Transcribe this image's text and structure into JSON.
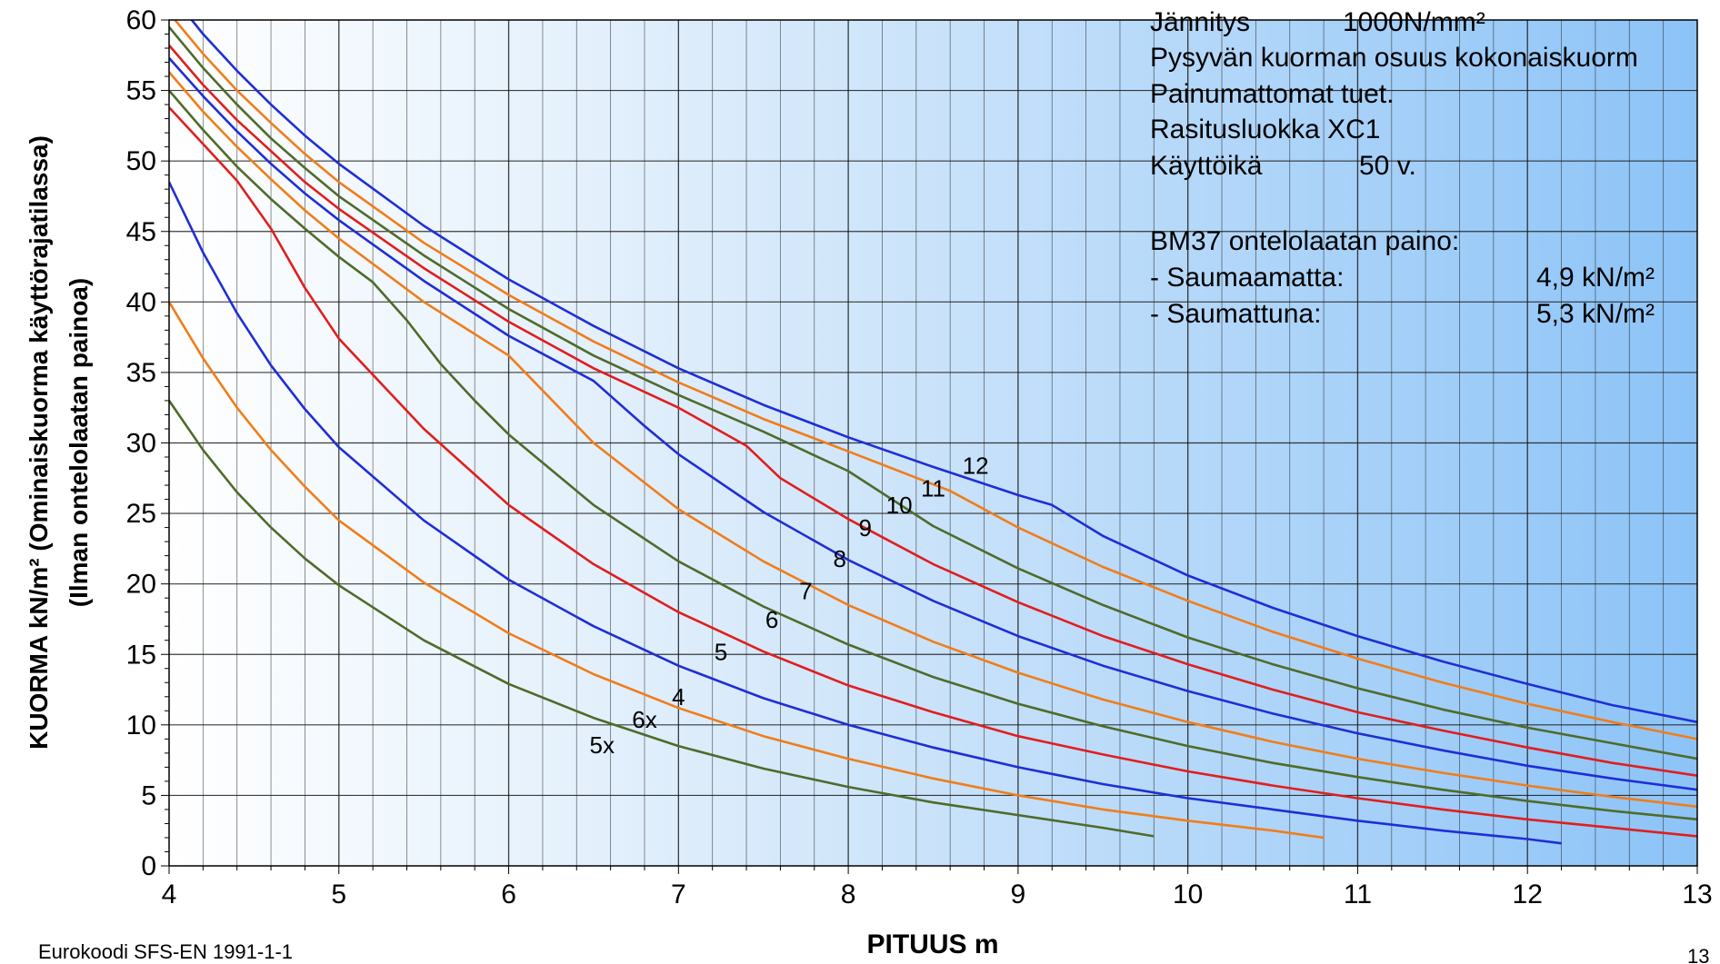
{
  "chart_data": {
    "type": "line",
    "xlabel": "PITUUS m",
    "ylabel_line1": "KUORMA kN/m² (Ominaiskuorma käyttörajatilassa)",
    "ylabel_line2": "(Ilman ontelolaatan painoa)",
    "xlim": [
      4,
      13
    ],
    "ylim": [
      0,
      60
    ],
    "xticks": [
      "4",
      "5",
      "6",
      "7",
      "8",
      "9",
      "10",
      "11",
      "12",
      "13"
    ],
    "yticks": [
      "0",
      "5",
      "10",
      "15",
      "20",
      "25",
      "30",
      "35",
      "40",
      "45",
      "50",
      "55",
      "60"
    ],
    "grid": true,
    "series": [
      {
        "name": "5x",
        "color": "#4f6b2a",
        "label_at": [
          6.55,
          8.0
        ],
        "points": [
          [
            4,
            33
          ],
          [
            4.2,
            29.5
          ],
          [
            4.4,
            26.5
          ],
          [
            4.6,
            24
          ],
          [
            4.8,
            21.8
          ],
          [
            5,
            19.9
          ],
          [
            5.5,
            16
          ],
          [
            6,
            12.9
          ],
          [
            6.5,
            10.5
          ],
          [
            7,
            8.5
          ],
          [
            7.5,
            6.9
          ],
          [
            8,
            5.6
          ],
          [
            8.5,
            4.5
          ],
          [
            9,
            3.6
          ],
          [
            9.5,
            2.7
          ],
          [
            9.8,
            2.1
          ]
        ]
      },
      {
        "name": "6x",
        "color": "#f07d1a",
        "label_at": [
          6.8,
          9.8
        ],
        "points": [
          [
            4,
            40
          ],
          [
            4.2,
            36
          ],
          [
            4.4,
            32.5
          ],
          [
            4.6,
            29.5
          ],
          [
            4.8,
            26.9
          ],
          [
            5,
            24.5
          ],
          [
            5.5,
            20.1
          ],
          [
            6,
            16.5
          ],
          [
            6.5,
            13.6
          ],
          [
            7,
            11.2
          ],
          [
            7.5,
            9.2
          ],
          [
            8,
            7.6
          ],
          [
            8.5,
            6.2
          ],
          [
            9,
            5.0
          ],
          [
            9.5,
            4.0
          ],
          [
            10,
            3.2
          ],
          [
            10.5,
            2.5
          ],
          [
            10.8,
            2.0
          ]
        ]
      },
      {
        "name": "4",
        "color": "#1f2ed6",
        "label_at": [
          7.0,
          11.4
        ],
        "points": [
          [
            4,
            48.5
          ],
          [
            4.2,
            43.5
          ],
          [
            4.4,
            39.2
          ],
          [
            4.6,
            35.5
          ],
          [
            4.8,
            32.4
          ],
          [
            5,
            29.7
          ],
          [
            5.5,
            24.5
          ],
          [
            6,
            20.3
          ],
          [
            6.5,
            17
          ],
          [
            7,
            14.2
          ],
          [
            7.5,
            11.9
          ],
          [
            8,
            10.0
          ],
          [
            8.5,
            8.4
          ],
          [
            9,
            7.0
          ],
          [
            9.5,
            5.8
          ],
          [
            10,
            4.8
          ],
          [
            10.5,
            4.0
          ],
          [
            11,
            3.2
          ],
          [
            11.5,
            2.5
          ],
          [
            12,
            1.9
          ],
          [
            12.2,
            1.6
          ]
        ]
      },
      {
        "name": "5",
        "color": "#e01e1e",
        "label_at": [
          7.25,
          14.6
        ],
        "points": [
          [
            4,
            53.8
          ],
          [
            4.2,
            51.2
          ],
          [
            4.4,
            48.6
          ],
          [
            4.6,
            45.2
          ],
          [
            4.8,
            41.0
          ],
          [
            5,
            37.4
          ],
          [
            5.5,
            31
          ],
          [
            6,
            25.6
          ],
          [
            6.5,
            21.4
          ],
          [
            7,
            18.0
          ],
          [
            7.5,
            15.2
          ],
          [
            8,
            12.8
          ],
          [
            8.5,
            10.9
          ],
          [
            9,
            9.2
          ],
          [
            9.5,
            7.9
          ],
          [
            10,
            6.7
          ],
          [
            10.5,
            5.7
          ],
          [
            11,
            4.8
          ],
          [
            11.5,
            4.0
          ],
          [
            12,
            3.3
          ],
          [
            12.5,
            2.7
          ],
          [
            13,
            2.1
          ]
        ]
      },
      {
        "name": "6",
        "color": "#4f6b2a",
        "label_at": [
          7.55,
          16.9
        ],
        "points": [
          [
            4,
            55
          ],
          [
            4.2,
            52.2
          ],
          [
            4.4,
            49.6
          ],
          [
            4.6,
            47.3
          ],
          [
            4.8,
            45.2
          ],
          [
            5,
            43.2
          ],
          [
            5.2,
            41.4
          ],
          [
            5.4,
            38.7
          ],
          [
            5.6,
            35.6
          ],
          [
            5.8,
            33.0
          ],
          [
            6,
            30.6
          ],
          [
            6.5,
            25.6
          ],
          [
            7,
            21.6
          ],
          [
            7.5,
            18.4
          ],
          [
            8,
            15.7
          ],
          [
            8.5,
            13.4
          ],
          [
            9,
            11.5
          ],
          [
            9.5,
            9.9
          ],
          [
            10,
            8.5
          ],
          [
            10.5,
            7.3
          ],
          [
            11,
            6.3
          ],
          [
            11.5,
            5.4
          ],
          [
            12,
            4.6
          ],
          [
            12.5,
            3.9
          ],
          [
            13,
            3.3
          ]
        ]
      },
      {
        "name": "7",
        "color": "#f07d1a",
        "label_at": [
          7.75,
          18.9
        ],
        "points": [
          [
            4,
            56.3
          ],
          [
            4.2,
            53.5
          ],
          [
            4.4,
            51.0
          ],
          [
            4.6,
            48.7
          ],
          [
            4.8,
            46.5
          ],
          [
            5,
            44.5
          ],
          [
            5.5,
            40.0
          ],
          [
            6,
            36.2
          ],
          [
            6.5,
            30.0
          ],
          [
            7,
            25.3
          ],
          [
            7.5,
            21.6
          ],
          [
            8,
            18.5
          ],
          [
            8.5,
            15.9
          ],
          [
            9,
            13.7
          ],
          [
            9.5,
            11.8
          ],
          [
            10,
            10.2
          ],
          [
            10.5,
            8.8
          ],
          [
            11,
            7.6
          ],
          [
            11.5,
            6.6
          ],
          [
            12,
            5.7
          ],
          [
            12.5,
            4.9
          ],
          [
            13,
            4.2
          ]
        ]
      },
      {
        "name": "8",
        "color": "#1f2ed6",
        "label_at": [
          7.95,
          21.2
        ],
        "points": [
          [
            4,
            57.3
          ],
          [
            4.2,
            54.6
          ],
          [
            4.4,
            52.1
          ],
          [
            4.6,
            49.8
          ],
          [
            4.8,
            47.7
          ],
          [
            5,
            45.8
          ],
          [
            5.5,
            41.5
          ],
          [
            6,
            37.6
          ],
          [
            6.5,
            34.4
          ],
          [
            6.8,
            31.2
          ],
          [
            7,
            29.2
          ],
          [
            7.5,
            25.1
          ],
          [
            8,
            21.7
          ],
          [
            8.5,
            18.8
          ],
          [
            9,
            16.3
          ],
          [
            9.5,
            14.2
          ],
          [
            10,
            12.4
          ],
          [
            10.5,
            10.8
          ],
          [
            11,
            9.4
          ],
          [
            11.5,
            8.2
          ],
          [
            12,
            7.1
          ],
          [
            12.5,
            6.2
          ],
          [
            13,
            5.4
          ]
        ]
      },
      {
        "name": "9",
        "color": "#e01e1e",
        "label_at": [
          8.1,
          23.4
        ],
        "points": [
          [
            4,
            58.2
          ],
          [
            4.2,
            55.4
          ],
          [
            4.4,
            52.9
          ],
          [
            4.6,
            50.7
          ],
          [
            4.8,
            48.5
          ],
          [
            5,
            46.6
          ],
          [
            5.5,
            42.4
          ],
          [
            6,
            38.6
          ],
          [
            6.5,
            35.3
          ],
          [
            7,
            32.5
          ],
          [
            7.4,
            29.8
          ],
          [
            7.6,
            27.5
          ],
          [
            8,
            24.6
          ],
          [
            8.5,
            21.4
          ],
          [
            9,
            18.7
          ],
          [
            9.5,
            16.3
          ],
          [
            10,
            14.3
          ],
          [
            10.5,
            12.5
          ],
          [
            11,
            10.9
          ],
          [
            11.5,
            9.6
          ],
          [
            12,
            8.4
          ],
          [
            12.5,
            7.3
          ],
          [
            13,
            6.4
          ]
        ]
      },
      {
        "name": "10",
        "color": "#4f6b2a",
        "label_at": [
          8.3,
          25.0
        ],
        "points": [
          [
            4,
            59.5
          ],
          [
            4.2,
            56.6
          ],
          [
            4.4,
            54.0
          ],
          [
            4.6,
            51.6
          ],
          [
            4.8,
            49.5
          ],
          [
            5,
            47.5
          ],
          [
            5.5,
            43.3
          ],
          [
            6,
            39.5
          ],
          [
            6.5,
            36.2
          ],
          [
            7,
            33.4
          ],
          [
            7.5,
            30.8
          ],
          [
            8,
            28.0
          ],
          [
            8.5,
            24.1
          ],
          [
            9,
            21.1
          ],
          [
            9.5,
            18.5
          ],
          [
            10,
            16.2
          ],
          [
            10.5,
            14.3
          ],
          [
            11,
            12.6
          ],
          [
            11.5,
            11.1
          ],
          [
            12,
            9.8
          ],
          [
            12.5,
            8.7
          ],
          [
            13,
            7.6
          ]
        ]
      },
      {
        "name": "11",
        "color": "#f07d1a",
        "label_at": [
          8.5,
          26.2
        ],
        "points": [
          [
            4,
            60.5
          ],
          [
            4.2,
            57.6
          ],
          [
            4.4,
            55.0
          ],
          [
            4.6,
            52.7
          ],
          [
            4.8,
            50.5
          ],
          [
            5,
            48.5
          ],
          [
            5.5,
            44.2
          ],
          [
            6,
            40.5
          ],
          [
            6.5,
            37.2
          ],
          [
            7,
            34.3
          ],
          [
            7.5,
            31.7
          ],
          [
            8,
            29.4
          ],
          [
            8.6,
            26.6
          ],
          [
            9,
            24.0
          ],
          [
            9.5,
            21.2
          ],
          [
            10,
            18.8
          ],
          [
            10.5,
            16.6
          ],
          [
            11,
            14.7
          ],
          [
            11.5,
            13.0
          ],
          [
            12,
            11.5
          ],
          [
            12.5,
            10.2
          ],
          [
            13,
            9.0
          ]
        ]
      },
      {
        "name": "12",
        "color": "#1f2ed6",
        "label_at": [
          8.75,
          27.8
        ],
        "points": [
          [
            4.1,
            60.5
          ],
          [
            4.2,
            59.0
          ],
          [
            4.4,
            56.4
          ],
          [
            4.6,
            54.0
          ],
          [
            4.8,
            51.8
          ],
          [
            5,
            49.8
          ],
          [
            5.5,
            45.4
          ],
          [
            6,
            41.6
          ],
          [
            6.5,
            38.3
          ],
          [
            7,
            35.3
          ],
          [
            7.5,
            32.7
          ],
          [
            8,
            30.4
          ],
          [
            8.5,
            28.3
          ],
          [
            9,
            26.3
          ],
          [
            9.2,
            25.6
          ],
          [
            9.5,
            23.4
          ],
          [
            10,
            20.6
          ],
          [
            10.5,
            18.3
          ],
          [
            11,
            16.3
          ],
          [
            11.5,
            14.5
          ],
          [
            12,
            12.9
          ],
          [
            12.5,
            11.4
          ],
          [
            13,
            10.2
          ]
        ]
      }
    ]
  },
  "notes": {
    "line1_label": "Jännitys",
    "line1_value": "1000N/mm²",
    "line2": "Pysyvän kuorman osuus kokonaiskuorm",
    "line3": "Painumattomat tuet.",
    "line4": "Rasitusluokka XC1",
    "line5_label": "Käyttöikä",
    "line5_value": "50 v.",
    "line6": "BM37 ontelolaatan paino:",
    "line7_label": "- Saumaamatta:",
    "line7_value": "4,9 kN/m²",
    "line8_label": "- Saumattuna:",
    "line8_value": "5,3 kN/m²"
  },
  "footer": {
    "source": "Eurokoodi SFS-EN 1991-1-1",
    "page_number": "13"
  },
  "colors": {
    "bg_left": "#ffffff",
    "bg_right": "#8cc3f7",
    "grid": "#1a1a1a"
  }
}
